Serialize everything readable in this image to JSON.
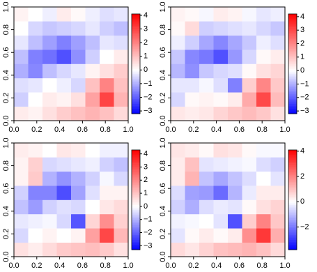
{
  "chart_data": [
    {
      "type": "heatmap",
      "xlim": [
        0,
        1
      ],
      "ylim": [
        0,
        1
      ],
      "xticks": [
        {
          "value": 0,
          "label": "0.0"
        },
        {
          "value": 0.2,
          "label": "0.2"
        },
        {
          "value": 0.4,
          "label": "0.4"
        },
        {
          "value": 0.6,
          "label": "0.6"
        },
        {
          "value": 0.8,
          "label": "0.8"
        },
        {
          "value": 1,
          "label": "1.0"
        }
      ],
      "yticks": [
        {
          "value": 0,
          "label": "0.0"
        },
        {
          "value": 0.2,
          "label": "0.2"
        },
        {
          "value": 0.4,
          "label": "0.4"
        },
        {
          "value": 0.6,
          "label": "0.6"
        },
        {
          "value": 0.8,
          "label": "0.8"
        },
        {
          "value": 1,
          "label": "1.0"
        }
      ],
      "zlim": [
        -3.2,
        4.1
      ],
      "zticks": [
        {
          "value": -3,
          "label": "−3"
        },
        {
          "value": -2,
          "label": "−2"
        },
        {
          "value": -1,
          "label": "−1"
        },
        0,
        1,
        2,
        3,
        4
      ],
      "low_color": "#0000ff",
      "mid_color": "#ffffff",
      "high_color": "#ff0000",
      "z": [
        [
          0.3,
          0.2,
          0.5,
          0.8,
          1.0,
          1.2,
          1.0,
          0.6
        ],
        [
          -0.6,
          0.0,
          0.3,
          0.2,
          0.5,
          1.5,
          3.0,
          1.2
        ],
        [
          -0.4,
          -0.3,
          0.0,
          -0.2,
          -0.5,
          1.0,
          2.0,
          1.0
        ],
        [
          -1.0,
          -1.5,
          -0.8,
          -0.5,
          -0.3,
          0.2,
          0.5,
          0.8
        ],
        [
          -0.8,
          -1.6,
          -1.8,
          -2.2,
          -1.4,
          -0.6,
          0.0,
          0.3
        ],
        [
          -0.3,
          -0.8,
          -1.2,
          -1.6,
          -1.2,
          -0.8,
          -0.3,
          -0.4
        ],
        [
          0.0,
          -0.5,
          -0.7,
          -0.6,
          -0.5,
          -0.3,
          -0.6,
          -0.8
        ],
        [
          0.2,
          0.0,
          -0.2,
          0.3,
          0.1,
          -0.2,
          -0.4,
          -0.3
        ]
      ]
    },
    {
      "type": "heatmap",
      "xlim": [
        0,
        1
      ],
      "ylim": [
        0,
        1
      ],
      "xticks": [
        {
          "value": 0,
          "label": "0.0"
        },
        {
          "value": 0.2,
          "label": "0.2"
        },
        {
          "value": 0.4,
          "label": "0.4"
        },
        {
          "value": 0.6,
          "label": "0.6"
        },
        {
          "value": 0.8,
          "label": "0.8"
        },
        {
          "value": 1,
          "label": "1.0"
        }
      ],
      "yticks": [
        {
          "value": 0,
          "label": "0.0"
        },
        {
          "value": 0.2,
          "label": "0.2"
        },
        {
          "value": 0.4,
          "label": "0.4"
        },
        {
          "value": 0.6,
          "label": "0.6"
        },
        {
          "value": 0.8,
          "label": "0.8"
        },
        {
          "value": 1,
          "label": "1.0"
        }
      ],
      "zlim": [
        -3.2,
        4.2
      ],
      "zticks": [
        {
          "value": -3,
          "label": "−3"
        },
        {
          "value": -2,
          "label": "−2"
        },
        {
          "value": -1,
          "label": "−1"
        },
        0,
        1,
        2,
        3,
        4
      ],
      "low_color": "#0000ff",
      "mid_color": "#ffffff",
      "high_color": "#ff0000",
      "z": [
        [
          0.4,
          0.3,
          0.4,
          0.7,
          0.9,
          1.1,
          0.9,
          0.5
        ],
        [
          -0.5,
          0.1,
          0.2,
          0.1,
          0.3,
          1.4,
          3.0,
          1.1
        ],
        [
          -0.3,
          -0.3,
          -0.1,
          -0.4,
          -1.6,
          0.8,
          2.0,
          0.9
        ],
        [
          -0.9,
          -1.4,
          -0.7,
          -0.5,
          -0.4,
          0.1,
          0.5,
          0.7
        ],
        [
          -0.7,
          -1.5,
          -1.7,
          -2.2,
          -1.3,
          -0.5,
          0.1,
          0.3
        ],
        [
          -0.2,
          -0.6,
          -1.1,
          -1.5,
          -1.1,
          -0.7,
          -0.2,
          -0.4
        ],
        [
          0.1,
          0.6,
          -0.6,
          -0.5,
          -0.4,
          -0.3,
          -0.5,
          -0.7
        ],
        [
          0.2,
          0.1,
          -0.1,
          0.3,
          0.2,
          -0.1,
          -0.3,
          -0.2
        ]
      ]
    },
    {
      "type": "heatmap",
      "xlim": [
        0,
        1
      ],
      "ylim": [
        0,
        1
      ],
      "xticks": [
        {
          "value": 0,
          "label": "0.0"
        },
        {
          "value": 0.2,
          "label": "0.2"
        },
        {
          "value": 0.4,
          "label": "0.4"
        },
        {
          "value": 0.6,
          "label": "0.6"
        },
        {
          "value": 0.8,
          "label": "0.8"
        },
        {
          "value": 1,
          "label": "1.0"
        }
      ],
      "yticks": [
        {
          "value": 0,
          "label": "0.0"
        },
        {
          "value": 0.2,
          "label": "0.2"
        },
        {
          "value": 0.4,
          "label": "0.4"
        },
        {
          "value": 0.6,
          "label": "0.6"
        },
        {
          "value": 0.8,
          "label": "0.8"
        },
        {
          "value": 1,
          "label": "1.0"
        }
      ],
      "zlim": [
        -3.3,
        4.3
      ],
      "zticks": [
        {
          "value": -3,
          "label": "−3"
        },
        {
          "value": -2,
          "label": "−2"
        },
        {
          "value": -1,
          "label": "−1"
        },
        0,
        1,
        2,
        3,
        4
      ],
      "low_color": "#0000ff",
      "mid_color": "#ffffff",
      "high_color": "#ff0000",
      "z": [
        [
          0.5,
          0.3,
          0.6,
          0.9,
          1.0,
          1.1,
          0.9,
          0.5
        ],
        [
          -0.5,
          0.0,
          0.2,
          0.0,
          0.2,
          1.6,
          3.1,
          1.2
        ],
        [
          -0.3,
          -0.2,
          -0.1,
          -0.5,
          -2.2,
          0.7,
          1.9,
          0.8
        ],
        [
          -0.8,
          -1.3,
          -0.6,
          -0.4,
          -0.5,
          0.0,
          0.4,
          0.6
        ],
        [
          -0.6,
          -1.6,
          -1.6,
          -2.3,
          -1.2,
          -0.4,
          0.2,
          0.2
        ],
        [
          0.2,
          0.9,
          -1.0,
          -1.4,
          -1.0,
          -0.6,
          -0.1,
          -0.5
        ],
        [
          0.2,
          0.8,
          -0.5,
          -0.4,
          -0.3,
          -0.2,
          -0.6,
          -0.8
        ],
        [
          0.3,
          0.2,
          0.0,
          0.4,
          0.3,
          0.0,
          -0.2,
          -0.2
        ]
      ]
    },
    {
      "type": "heatmap",
      "xlim": [
        0,
        1
      ],
      "ylim": [
        0,
        1
      ],
      "xticks": [
        {
          "value": 0,
          "label": "0.0"
        },
        {
          "value": 0.2,
          "label": "0.2"
        },
        {
          "value": 0.4,
          "label": "0.4"
        },
        {
          "value": 0.6,
          "label": "0.6"
        },
        {
          "value": 0.8,
          "label": "0.8"
        },
        {
          "value": 1,
          "label": "1.0"
        }
      ],
      "yticks": [
        {
          "value": 0,
          "label": "0.0"
        },
        {
          "value": 0.2,
          "label": "0.2"
        },
        {
          "value": 0.4,
          "label": "0.4"
        },
        {
          "value": 0.6,
          "label": "0.6"
        },
        {
          "value": 0.8,
          "label": "0.8"
        },
        {
          "value": 1,
          "label": "1.0"
        }
      ],
      "zlim": [
        -3.8,
        4.1
      ],
      "zticks": [
        {
          "value": -2,
          "label": "−2"
        },
        0,
        2,
        4
      ],
      "low_color": "#0000ff",
      "mid_color": "#ffffff",
      "high_color": "#ff0000",
      "z": [
        [
          0.6,
          0.4,
          0.7,
          1.0,
          1.1,
          1.2,
          1.0,
          0.6
        ],
        [
          -0.4,
          0.1,
          0.3,
          0.1,
          0.3,
          1.8,
          3.2,
          1.3
        ],
        [
          -0.2,
          -0.1,
          0.0,
          -0.4,
          -2.6,
          0.8,
          2.0,
          0.9
        ],
        [
          -0.7,
          -1.2,
          -0.5,
          -0.3,
          -0.4,
          0.1,
          0.5,
          0.7
        ],
        [
          -0.5,
          -1.4,
          -1.5,
          -2.2,
          -1.1,
          -0.3,
          0.3,
          0.3
        ],
        [
          0.3,
          1.2,
          -0.9,
          -1.3,
          -0.9,
          -0.5,
          0.0,
          -0.4
        ],
        [
          0.3,
          1.0,
          -0.4,
          -0.3,
          -0.2,
          -0.1,
          -0.5,
          -0.7
        ],
        [
          0.4,
          0.3,
          0.1,
          0.5,
          0.4,
          0.1,
          -0.1,
          -0.1
        ]
      ]
    }
  ]
}
